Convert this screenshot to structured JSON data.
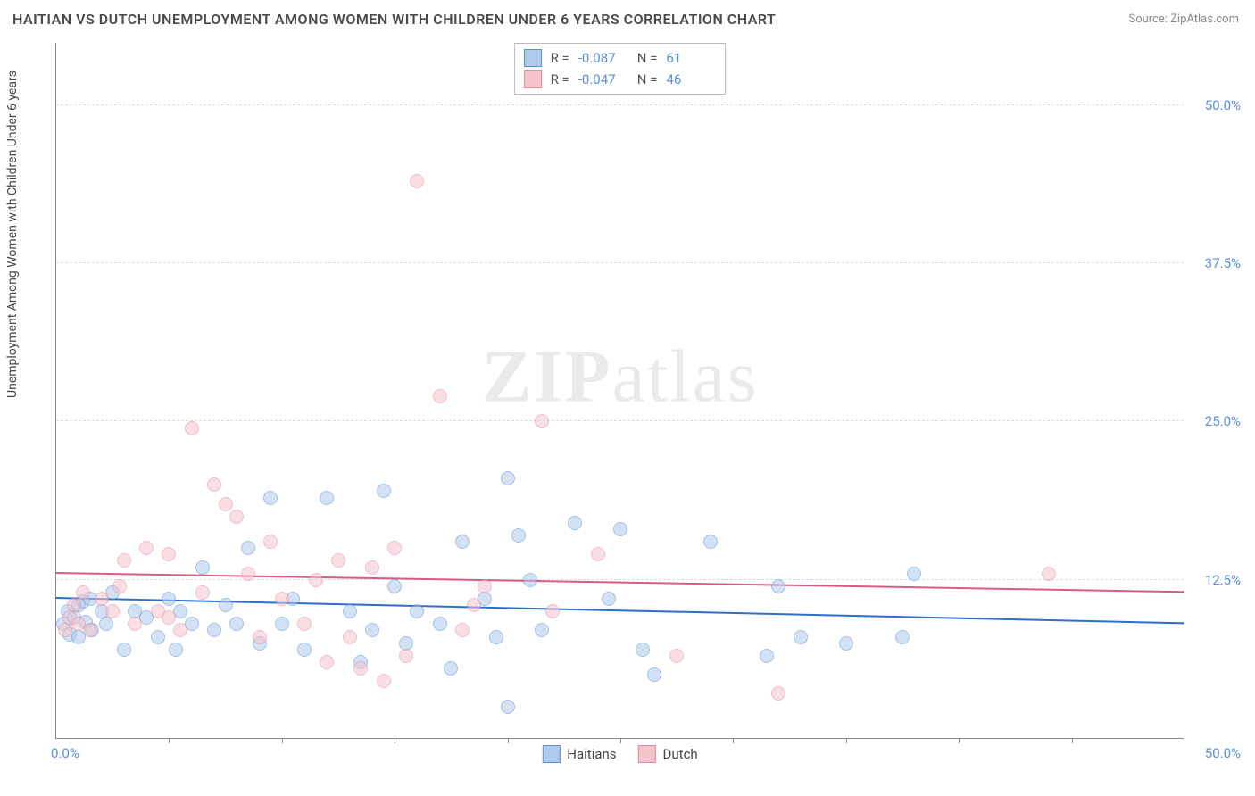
{
  "title": "HAITIAN VS DUTCH UNEMPLOYMENT AMONG WOMEN WITH CHILDREN UNDER 6 YEARS CORRELATION CHART",
  "source_label": "Source: ZipAtlas.com",
  "ylabel": "Unemployment Among Women with Children Under 6 years",
  "watermark": {
    "part1": "ZIP",
    "part2": "atlas"
  },
  "chart": {
    "type": "scatter",
    "xlim": [
      0,
      50
    ],
    "ylim": [
      0,
      55
    ],
    "x_origin_label": "0.0%",
    "x_max_label": "50.0%",
    "y_ticks": [
      {
        "v": 12.5,
        "label": "12.5%"
      },
      {
        "v": 25.0,
        "label": "25.0%"
      },
      {
        "v": 37.5,
        "label": "37.5%"
      },
      {
        "v": 50.0,
        "label": "50.0%"
      }
    ],
    "x_tick_step": 5,
    "background_color": "#ffffff",
    "grid_color": "#dddddd",
    "marker_radius": 8,
    "marker_opacity": 0.55,
    "series": [
      {
        "name": "Haitians",
        "fill_color": "#aecbec",
        "stroke_color": "#5b8fd6",
        "trend_color": "#2e6fc9",
        "R": "-0.087",
        "N": "61",
        "trend": {
          "x1": 0,
          "y1": 11.0,
          "x2": 50,
          "y2": 9.0
        },
        "points": [
          [
            0.3,
            9.0
          ],
          [
            0.5,
            10.0
          ],
          [
            0.6,
            8.2
          ],
          [
            0.8,
            9.5
          ],
          [
            1.0,
            10.5
          ],
          [
            1.0,
            8.0
          ],
          [
            1.2,
            10.8
          ],
          [
            1.3,
            9.2
          ],
          [
            1.5,
            11.0
          ],
          [
            1.6,
            8.5
          ],
          [
            2.0,
            10.0
          ],
          [
            2.2,
            9.0
          ],
          [
            2.5,
            11.5
          ],
          [
            3.0,
            7.0
          ],
          [
            3.5,
            10.0
          ],
          [
            4.0,
            9.5
          ],
          [
            4.5,
            8.0
          ],
          [
            5.0,
            11.0
          ],
          [
            5.5,
            10.0
          ],
          [
            5.3,
            7.0
          ],
          [
            6.0,
            9.0
          ],
          [
            6.5,
            13.5
          ],
          [
            7.0,
            8.5
          ],
          [
            7.5,
            10.5
          ],
          [
            8.0,
            9.0
          ],
          [
            8.5,
            15.0
          ],
          [
            9.0,
            7.5
          ],
          [
            9.5,
            19.0
          ],
          [
            10.0,
            9.0
          ],
          [
            10.5,
            11.0
          ],
          [
            11.0,
            7.0
          ],
          [
            12.0,
            19.0
          ],
          [
            13.0,
            10.0
          ],
          [
            13.5,
            6.0
          ],
          [
            14.0,
            8.5
          ],
          [
            14.5,
            19.5
          ],
          [
            15.0,
            12.0
          ],
          [
            15.5,
            7.5
          ],
          [
            16.0,
            10.0
          ],
          [
            17.0,
            9.0
          ],
          [
            17.5,
            5.5
          ],
          [
            18.0,
            15.5
          ],
          [
            19.0,
            11.0
          ],
          [
            19.5,
            8.0
          ],
          [
            20.0,
            20.5
          ],
          [
            20.5,
            16.0
          ],
          [
            21.0,
            12.5
          ],
          [
            21.5,
            8.5
          ],
          [
            20.0,
            2.5
          ],
          [
            23.0,
            17.0
          ],
          [
            24.5,
            11.0
          ],
          [
            25.0,
            16.5
          ],
          [
            26.0,
            7.0
          ],
          [
            26.5,
            5.0
          ],
          [
            29.0,
            15.5
          ],
          [
            31.5,
            6.5
          ],
          [
            32.0,
            12.0
          ],
          [
            33.0,
            8.0
          ],
          [
            35.0,
            7.5
          ],
          [
            37.5,
            8.0
          ],
          [
            38.0,
            13.0
          ]
        ]
      },
      {
        "name": "Dutch",
        "fill_color": "#f5c4cd",
        "stroke_color": "#e48ba0",
        "trend_color": "#d95b80",
        "R": "-0.047",
        "N": "46",
        "trend": {
          "x1": 0,
          "y1": 13.0,
          "x2": 50,
          "y2": 11.5
        },
        "points": [
          [
            0.4,
            8.5
          ],
          [
            0.6,
            9.5
          ],
          [
            0.8,
            10.5
          ],
          [
            1.0,
            9.0
          ],
          [
            1.5,
            8.5
          ],
          [
            2.0,
            11.0
          ],
          [
            2.5,
            10.0
          ],
          [
            3.0,
            14.0
          ],
          [
            3.5,
            9.0
          ],
          [
            4.0,
            15.0
          ],
          [
            4.5,
            10.0
          ],
          [
            5.0,
            14.5
          ],
          [
            5.5,
            8.5
          ],
          [
            6.0,
            24.5
          ],
          [
            6.5,
            11.5
          ],
          [
            7.0,
            20.0
          ],
          [
            7.5,
            18.5
          ],
          [
            8.0,
            17.5
          ],
          [
            8.5,
            13.0
          ],
          [
            9.0,
            8.0
          ],
          [
            9.5,
            15.5
          ],
          [
            10.0,
            11.0
          ],
          [
            11.0,
            9.0
          ],
          [
            11.5,
            12.5
          ],
          [
            12.0,
            6.0
          ],
          [
            12.5,
            14.0
          ],
          [
            13.0,
            8.0
          ],
          [
            13.5,
            5.5
          ],
          [
            14.0,
            13.5
          ],
          [
            14.5,
            4.5
          ],
          [
            15.0,
            15.0
          ],
          [
            15.5,
            6.5
          ],
          [
            16.0,
            44.0
          ],
          [
            17.0,
            27.0
          ],
          [
            18.0,
            8.5
          ],
          [
            18.5,
            10.5
          ],
          [
            19.0,
            12.0
          ],
          [
            21.5,
            25.0
          ],
          [
            22.0,
            10.0
          ],
          [
            24.0,
            14.5
          ],
          [
            27.5,
            6.5
          ],
          [
            32.0,
            3.5
          ],
          [
            44.0,
            13.0
          ],
          [
            5.0,
            9.5
          ],
          [
            2.8,
            12.0
          ],
          [
            1.2,
            11.5
          ]
        ]
      }
    ],
    "legend_bottom": [
      {
        "label": "Haitians",
        "fill": "#aecbec",
        "stroke": "#5b8fd6"
      },
      {
        "label": "Dutch",
        "fill": "#f5c4cd",
        "stroke": "#e48ba0"
      }
    ]
  }
}
